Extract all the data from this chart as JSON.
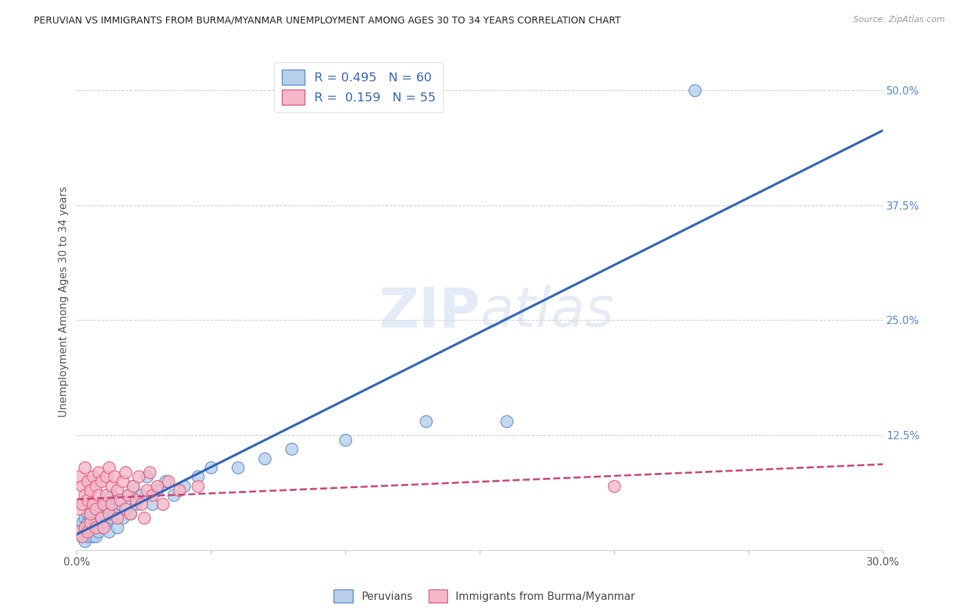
{
  "title": "PERUVIAN VS IMMIGRANTS FROM BURMA/MYANMAR UNEMPLOYMENT AMONG AGES 30 TO 34 YEARS CORRELATION CHART",
  "source": "Source: ZipAtlas.com",
  "ylabel": "Unemployment Among Ages 30 to 34 years",
  "xlim": [
    0.0,
    0.3
  ],
  "ylim": [
    0.0,
    0.54
  ],
  "ytick_labels": [
    "50.0%",
    "37.5%",
    "25.0%",
    "12.5%"
  ],
  "ytick_positions": [
    0.5,
    0.375,
    0.25,
    0.125
  ],
  "grid_color": "#cccccc",
  "background_color": "#ffffff",
  "peruvian_fill": "#b8d0ea",
  "peruvian_edge": "#5588cc",
  "burma_fill": "#f5b8c8",
  "burma_edge": "#dd5577",
  "peruvian_line_color": "#3366bb",
  "burma_line_color": "#cc4477",
  "R_peruvian": 0.495,
  "N_peruvian": 60,
  "R_burma": 0.159,
  "N_burma": 55,
  "legend_label_peruvian": "Peruvians",
  "legend_label_burma": "Immigrants from Burma/Myanmar",
  "watermark": "ZIPatlas",
  "peruvian_x": [
    0.001,
    0.001,
    0.002,
    0.002,
    0.002,
    0.003,
    0.003,
    0.003,
    0.003,
    0.004,
    0.004,
    0.004,
    0.005,
    0.005,
    0.005,
    0.006,
    0.006,
    0.006,
    0.007,
    0.007,
    0.007,
    0.008,
    0.008,
    0.008,
    0.009,
    0.009,
    0.01,
    0.01,
    0.011,
    0.011,
    0.012,
    0.012,
    0.013,
    0.013,
    0.014,
    0.015,
    0.015,
    0.016,
    0.017,
    0.018,
    0.019,
    0.02,
    0.021,
    0.022,
    0.024,
    0.026,
    0.028,
    0.03,
    0.033,
    0.036,
    0.04,
    0.045,
    0.05,
    0.06,
    0.07,
    0.08,
    0.1,
    0.13,
    0.16,
    0.23
  ],
  "peruvian_y": [
    0.02,
    0.025,
    0.015,
    0.03,
    0.02,
    0.01,
    0.025,
    0.035,
    0.02,
    0.015,
    0.03,
    0.04,
    0.02,
    0.035,
    0.025,
    0.015,
    0.04,
    0.025,
    0.02,
    0.03,
    0.015,
    0.025,
    0.04,
    0.02,
    0.035,
    0.05,
    0.025,
    0.04,
    0.03,
    0.055,
    0.045,
    0.02,
    0.035,
    0.06,
    0.04,
    0.025,
    0.055,
    0.05,
    0.035,
    0.045,
    0.06,
    0.04,
    0.07,
    0.05,
    0.06,
    0.08,
    0.05,
    0.065,
    0.075,
    0.06,
    0.07,
    0.08,
    0.09,
    0.09,
    0.1,
    0.11,
    0.12,
    0.14,
    0.14,
    0.5
  ],
  "burma_x": [
    0.001,
    0.001,
    0.001,
    0.002,
    0.002,
    0.002,
    0.003,
    0.003,
    0.003,
    0.004,
    0.004,
    0.004,
    0.005,
    0.005,
    0.005,
    0.006,
    0.006,
    0.007,
    0.007,
    0.007,
    0.008,
    0.008,
    0.009,
    0.009,
    0.01,
    0.01,
    0.011,
    0.011,
    0.012,
    0.012,
    0.013,
    0.013,
    0.014,
    0.015,
    0.015,
    0.016,
    0.017,
    0.018,
    0.018,
    0.019,
    0.02,
    0.021,
    0.022,
    0.023,
    0.024,
    0.025,
    0.026,
    0.027,
    0.028,
    0.03,
    0.032,
    0.034,
    0.038,
    0.045,
    0.2
  ],
  "burma_y": [
    0.02,
    0.045,
    0.08,
    0.015,
    0.05,
    0.07,
    0.025,
    0.06,
    0.09,
    0.02,
    0.055,
    0.075,
    0.03,
    0.065,
    0.04,
    0.08,
    0.05,
    0.025,
    0.07,
    0.045,
    0.085,
    0.06,
    0.035,
    0.075,
    0.05,
    0.025,
    0.08,
    0.06,
    0.04,
    0.09,
    0.07,
    0.05,
    0.08,
    0.035,
    0.065,
    0.055,
    0.075,
    0.045,
    0.085,
    0.06,
    0.04,
    0.07,
    0.055,
    0.08,
    0.05,
    0.035,
    0.065,
    0.085,
    0.06,
    0.07,
    0.05,
    0.075,
    0.065,
    0.07,
    0.07
  ]
}
